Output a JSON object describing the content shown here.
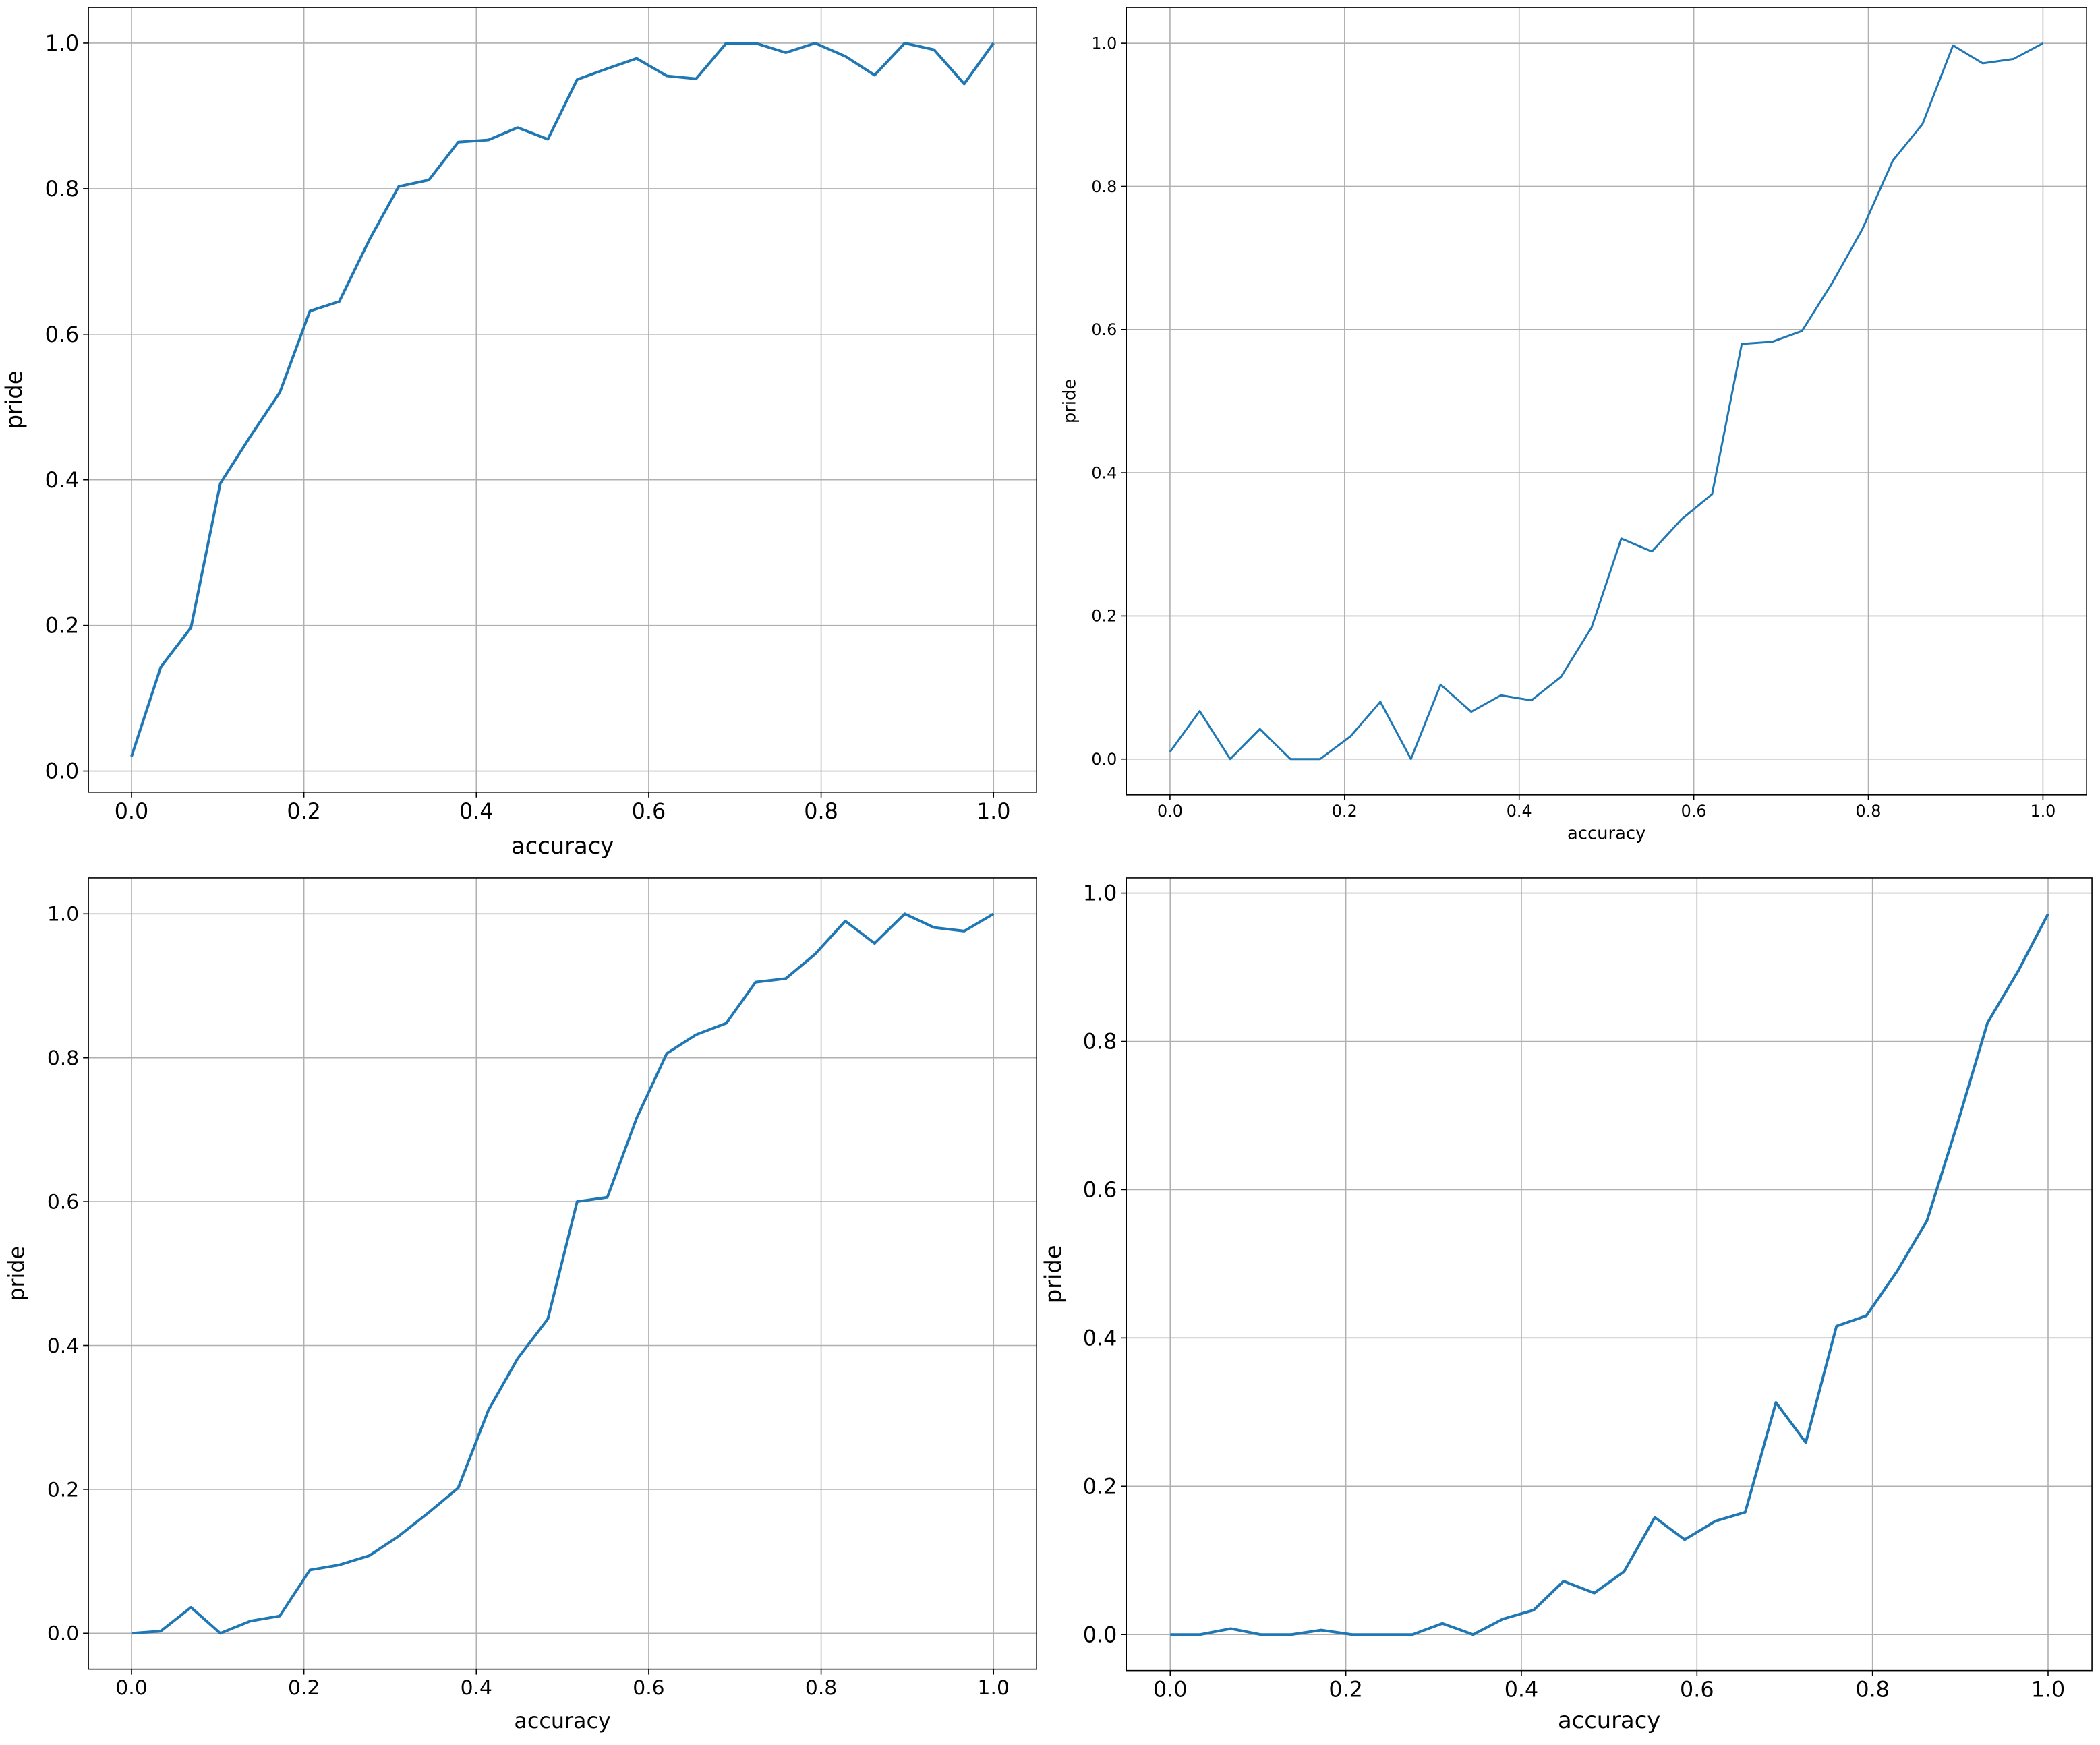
{
  "chart_data": [
    {
      "type": "line",
      "xlabel": "accuracy",
      "ylabel": "pride",
      "color": "#1f77b4",
      "grid": true,
      "x": [
        0,
        0.034,
        0.069,
        0.103,
        0.138,
        0.172,
        0.207,
        0.241,
        0.276,
        0.31,
        0.345,
        0.379,
        0.414,
        0.448,
        0.483,
        0.517,
        0.552,
        0.586,
        0.621,
        0.655,
        0.69,
        0.724,
        0.759,
        0.793,
        0.828,
        0.862,
        0.897,
        0.931,
        0.966,
        1
      ],
      "values": [
        0.02,
        0.143,
        0.197,
        0.395,
        0.46,
        0.52,
        0.632,
        0.645,
        0.73,
        0.803,
        0.812,
        0.864,
        0.867,
        0.884,
        0.868,
        0.95,
        0.965,
        0.979,
        0.955,
        0.951,
        1.0,
        1.0,
        0.987,
        1.0,
        0.982,
        0.956,
        1.0,
        0.991,
        0.944,
        1.0
      ],
      "xlim": [
        -0.05,
        1.05
      ],
      "ylim": [
        -0.029,
        1.049
      ],
      "xticks": [
        {
          "value": 0,
          "label": "0.0"
        },
        {
          "value": 0.2,
          "label": "0.2"
        },
        {
          "value": 0.4,
          "label": "0.4"
        },
        {
          "value": 0.6,
          "label": "0.6"
        },
        {
          "value": 0.8,
          "label": "0.8"
        },
        {
          "value": 1,
          "label": "1.0"
        }
      ],
      "yticks": [
        {
          "value": 0,
          "label": "0.0"
        },
        {
          "value": 0.2,
          "label": "0.2"
        },
        {
          "value": 0.4,
          "label": "0.4"
        },
        {
          "value": 0.6,
          "label": "0.6"
        },
        {
          "value": 0.8,
          "label": "0.8"
        },
        {
          "value": 1,
          "label": "1.0"
        }
      ]
    },
    {
      "type": "line",
      "xlabel": "accuracy",
      "ylabel": "pride",
      "color": "#1f77b4",
      "grid": true,
      "x": [
        0,
        0.034,
        0.069,
        0.103,
        0.138,
        0.172,
        0.207,
        0.241,
        0.276,
        0.31,
        0.345,
        0.379,
        0.414,
        0.448,
        0.483,
        0.517,
        0.552,
        0.586,
        0.621,
        0.655,
        0.69,
        0.724,
        0.759,
        0.793,
        0.828,
        0.862,
        0.897,
        0.931,
        0.966,
        1
      ],
      "values": [
        0.01,
        0.067,
        0.0,
        0.042,
        0.0,
        0.0,
        0.032,
        0.08,
        0.0,
        0.104,
        0.066,
        0.089,
        0.082,
        0.115,
        0.184,
        0.308,
        0.29,
        0.335,
        0.37,
        0.58,
        0.583,
        0.598,
        0.666,
        0.74,
        0.836,
        0.887,
        0.997,
        0.972,
        0.978,
        1.0
      ],
      "xlim": [
        -0.05,
        1.05
      ],
      "ylim": [
        -0.05,
        1.05
      ],
      "xticks": [
        {
          "value": 0,
          "label": "0.0"
        },
        {
          "value": 0.2,
          "label": "0.2"
        },
        {
          "value": 0.4,
          "label": "0.4"
        },
        {
          "value": 0.6,
          "label": "0.6"
        },
        {
          "value": 0.8,
          "label": "0.8"
        },
        {
          "value": 1,
          "label": "1.0"
        }
      ],
      "yticks": [
        {
          "value": 0,
          "label": "0.0"
        },
        {
          "value": 0.2,
          "label": "0.2"
        },
        {
          "value": 0.4,
          "label": "0.4"
        },
        {
          "value": 0.6,
          "label": "0.6"
        },
        {
          "value": 0.8,
          "label": "0.8"
        },
        {
          "value": 1,
          "label": "1.0"
        }
      ]
    },
    {
      "type": "line",
      "xlabel": "accuracy",
      "ylabel": "pride",
      "color": "#1f77b4",
      "grid": true,
      "x": [
        0,
        0.034,
        0.069,
        0.103,
        0.138,
        0.172,
        0.207,
        0.241,
        0.276,
        0.31,
        0.345,
        0.379,
        0.414,
        0.448,
        0.483,
        0.517,
        0.552,
        0.586,
        0.621,
        0.655,
        0.69,
        0.724,
        0.759,
        0.793,
        0.828,
        0.862,
        0.897,
        0.931,
        0.966,
        1
      ],
      "values": [
        0.0,
        0.003,
        0.036,
        0.0,
        0.017,
        0.024,
        0.088,
        0.095,
        0.108,
        0.135,
        0.168,
        0.202,
        0.31,
        0.382,
        0.437,
        0.6,
        0.606,
        0.716,
        0.806,
        0.832,
        0.848,
        0.905,
        0.91,
        0.944,
        0.99,
        0.959,
        1.0,
        0.981,
        0.976,
        1.0
      ],
      "xlim": [
        -0.05,
        1.05
      ],
      "ylim": [
        -0.05,
        1.05
      ],
      "xticks": [
        {
          "value": 0,
          "label": "0.0"
        },
        {
          "value": 0.2,
          "label": "0.2"
        },
        {
          "value": 0.4,
          "label": "0.4"
        },
        {
          "value": 0.6,
          "label": "0.6"
        },
        {
          "value": 0.8,
          "label": "0.8"
        },
        {
          "value": 1,
          "label": "1.0"
        }
      ],
      "yticks": [
        {
          "value": 0,
          "label": "0.0"
        },
        {
          "value": 0.2,
          "label": "0.2"
        },
        {
          "value": 0.4,
          "label": "0.4"
        },
        {
          "value": 0.6,
          "label": "0.6"
        },
        {
          "value": 0.8,
          "label": "0.8"
        },
        {
          "value": 1,
          "label": "1.0"
        }
      ]
    },
    {
      "type": "line",
      "xlabel": "accuracy",
      "ylabel": "pride",
      "color": "#1f77b4",
      "grid": true,
      "x": [
        0,
        0.034,
        0.069,
        0.103,
        0.138,
        0.172,
        0.207,
        0.241,
        0.276,
        0.31,
        0.345,
        0.379,
        0.414,
        0.448,
        0.483,
        0.517,
        0.552,
        0.586,
        0.621,
        0.655,
        0.69,
        0.724,
        0.759,
        0.793,
        0.828,
        0.862,
        0.897,
        0.931,
        0.966,
        1
      ],
      "values": [
        0.0,
        0.0,
        0.008,
        0.0,
        0.0,
        0.006,
        0.0,
        0.0,
        0.0,
        0.015,
        0.0,
        0.021,
        0.033,
        0.072,
        0.056,
        0.085,
        0.158,
        0.128,
        0.153,
        0.165,
        0.313,
        0.259,
        0.416,
        0.43,
        0.49,
        0.558,
        0.69,
        0.825,
        0.895,
        0.972
      ],
      "xlim": [
        -0.05,
        1.05
      ],
      "ylim": [
        -0.0486,
        1.0206
      ],
      "xticks": [
        {
          "value": 0,
          "label": "0.0"
        },
        {
          "value": 0.2,
          "label": "0.2"
        },
        {
          "value": 0.4,
          "label": "0.4"
        },
        {
          "value": 0.6,
          "label": "0.6"
        },
        {
          "value": 0.8,
          "label": "0.8"
        },
        {
          "value": 1,
          "label": "1.0"
        }
      ],
      "yticks": [
        {
          "value": 0,
          "label": "0.0"
        },
        {
          "value": 0.2,
          "label": "0.2"
        },
        {
          "value": 0.4,
          "label": "0.4"
        },
        {
          "value": 0.6,
          "label": "0.6"
        },
        {
          "value": 0.8,
          "label": "0.8"
        },
        {
          "value": 1,
          "label": "1.0"
        }
      ]
    }
  ]
}
